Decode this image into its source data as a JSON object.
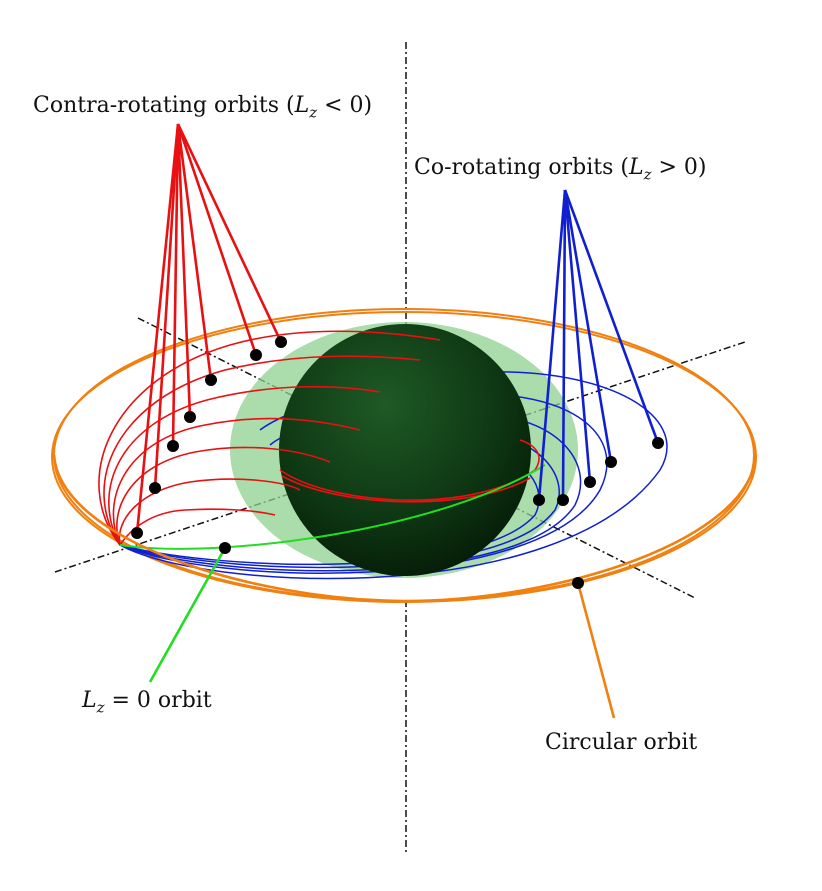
{
  "labels": {
    "contra": {
      "prefix": "Contra-rotating orbits (",
      "var": "L",
      "sub": "z",
      "suffix": " < 0)"
    },
    "co": {
      "prefix": "Co-rotating orbits (",
      "var": "L",
      "sub": "z",
      "suffix": " > 0)"
    },
    "zero": {
      "var": "L",
      "sub": "z",
      "suffix": " = 0 orbit"
    },
    "circular": "Circular orbit"
  },
  "colors": {
    "contra": "#e81010",
    "co": "#1020d0",
    "zero": "#22dd22",
    "circular": "#f08010",
    "sphere_core": "#0d3d12",
    "sphere_halo": "#8fd08f",
    "axis": "#111111",
    "marker": "#000000"
  },
  "counts": {
    "contra_orbits": 7,
    "co_orbits": 5
  }
}
